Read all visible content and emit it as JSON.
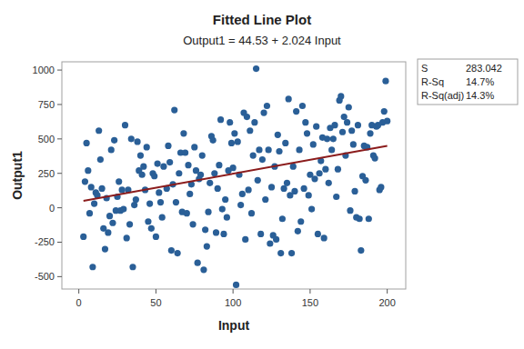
{
  "chart_data": {
    "type": "scatter",
    "title": "Fitted Line Plot",
    "subtitle": "Output1 = 44.53 + 2.024 Input",
    "x_label": "Input",
    "y_label": "Output1",
    "xlim": [
      -11,
      212
    ],
    "ylim": [
      -590,
      1060
    ],
    "xticks": [
      0,
      50,
      100,
      150,
      200
    ],
    "yticks": [
      -500,
      -250,
      0,
      250,
      500,
      750,
      1000
    ],
    "grid": false,
    "stats": [
      {
        "label": "S",
        "value": "283.042"
      },
      {
        "label": "R-Sq",
        "value": "14.7%"
      },
      {
        "label": "R-Sq(adj)",
        "value": "14.3%"
      }
    ],
    "series": [
      {
        "type": "scatter",
        "color": "#2a5f97",
        "marker": "circle",
        "x": [
          3,
          4,
          5,
          6,
          7,
          8,
          9,
          10,
          11,
          12,
          13,
          14,
          15,
          16,
          17,
          18,
          19,
          20,
          21,
          22,
          23,
          24,
          25,
          26,
          27,
          28,
          29,
          30,
          31,
          32,
          33,
          34,
          35,
          36,
          37,
          38,
          39,
          40,
          41,
          42,
          43,
          44,
          45,
          46,
          47,
          48,
          49,
          50,
          51,
          52,
          53,
          54,
          55,
          57,
          58,
          59,
          60,
          61,
          62,
          63,
          64,
          65,
          66,
          67,
          68,
          69,
          70,
          71,
          72,
          73,
          74,
          75,
          76,
          77,
          78,
          79,
          80,
          81,
          82,
          83,
          84,
          85,
          86,
          87,
          88,
          89,
          90,
          91,
          92,
          93,
          94,
          95,
          96,
          97,
          98,
          99,
          100,
          101,
          102,
          103,
          104,
          105,
          106,
          107,
          108,
          109,
          110,
          111,
          112,
          113,
          114,
          115,
          116,
          117,
          118,
          119,
          120,
          121,
          122,
          123,
          124,
          125,
          126,
          127,
          128,
          129,
          130,
          131,
          132,
          133,
          134,
          135,
          136,
          137,
          138,
          139,
          140,
          141,
          142,
          143,
          144,
          145,
          146,
          147,
          148,
          149,
          150,
          151,
          152,
          153,
          154,
          155,
          156,
          157,
          158,
          159,
          160,
          161,
          162,
          163,
          164,
          165,
          166,
          167,
          168,
          169,
          170,
          171,
          172,
          173,
          174,
          175,
          176,
          177,
          178,
          179,
          180,
          181,
          182,
          183,
          184,
          185,
          186,
          187,
          188,
          189,
          190,
          191,
          192,
          193,
          194,
          195,
          196,
          197,
          198,
          199,
          200
        ],
        "values": [
          -210,
          190,
          470,
          270,
          -40,
          150,
          -430,
          30,
          110,
          90,
          560,
          350,
          140,
          -150,
          -300,
          70,
          -180,
          -60,
          420,
          -110,
          490,
          -20,
          80,
          190,
          -20,
          130,
          -10,
          600,
          -220,
          130,
          -120,
          500,
          -430,
          20,
          60,
          480,
          270,
          380,
          240,
          300,
          130,
          440,
          -100,
          30,
          -150,
          250,
          230,
          -210,
          320,
          110,
          40,
          -70,
          300,
          140,
          450,
          330,
          -310,
          170,
          710,
          40,
          -330,
          250,
          400,
          -30,
          540,
          400,
          -40,
          310,
          100,
          170,
          -120,
          440,
          270,
          -400,
          210,
          240,
          380,
          -450,
          -160,
          -280,
          -30,
          180,
          520,
          490,
          250,
          -180,
          140,
          310,
          640,
          -10,
          -190,
          60,
          -70,
          270,
          620,
          470,
          290,
          540,
          -560,
          480,
          240,
          20,
          100,
          690,
          -230,
          660,
          130,
          560,
          -40,
          380,
          620,
          1010,
          200,
          420,
          -190,
          350,
          690,
          60,
          740,
          420,
          -260,
          150,
          -200,
          300,
          -230,
          530,
          410,
          -330,
          -80,
          140,
          470,
          180,
          790,
          90,
          -330,
          300,
          120,
          700,
          -170,
          420,
          -100,
          740,
          140,
          620,
          540,
          90,
          240,
          -10,
          460,
          210,
          590,
          -190,
          250,
          340,
          510,
          -220,
          280,
          500,
          180,
          580,
          420,
          500,
          600,
          80,
          280,
          780,
          810,
          550,
          660,
          380,
          620,
          730,
          -20,
          560,
          460,
          120,
          -70,
          600,
          -80,
          -310,
          230,
          450,
          200,
          440,
          -80,
          540,
          600,
          380,
          360,
          590,
          600,
          130,
          150,
          620,
          700,
          920,
          630
        ]
      },
      {
        "type": "line",
        "color": "#8b1c1c",
        "line_style": "solid",
        "x": [
          3,
          200
        ],
        "values": [
          50.6,
          449.33
        ]
      }
    ]
  }
}
